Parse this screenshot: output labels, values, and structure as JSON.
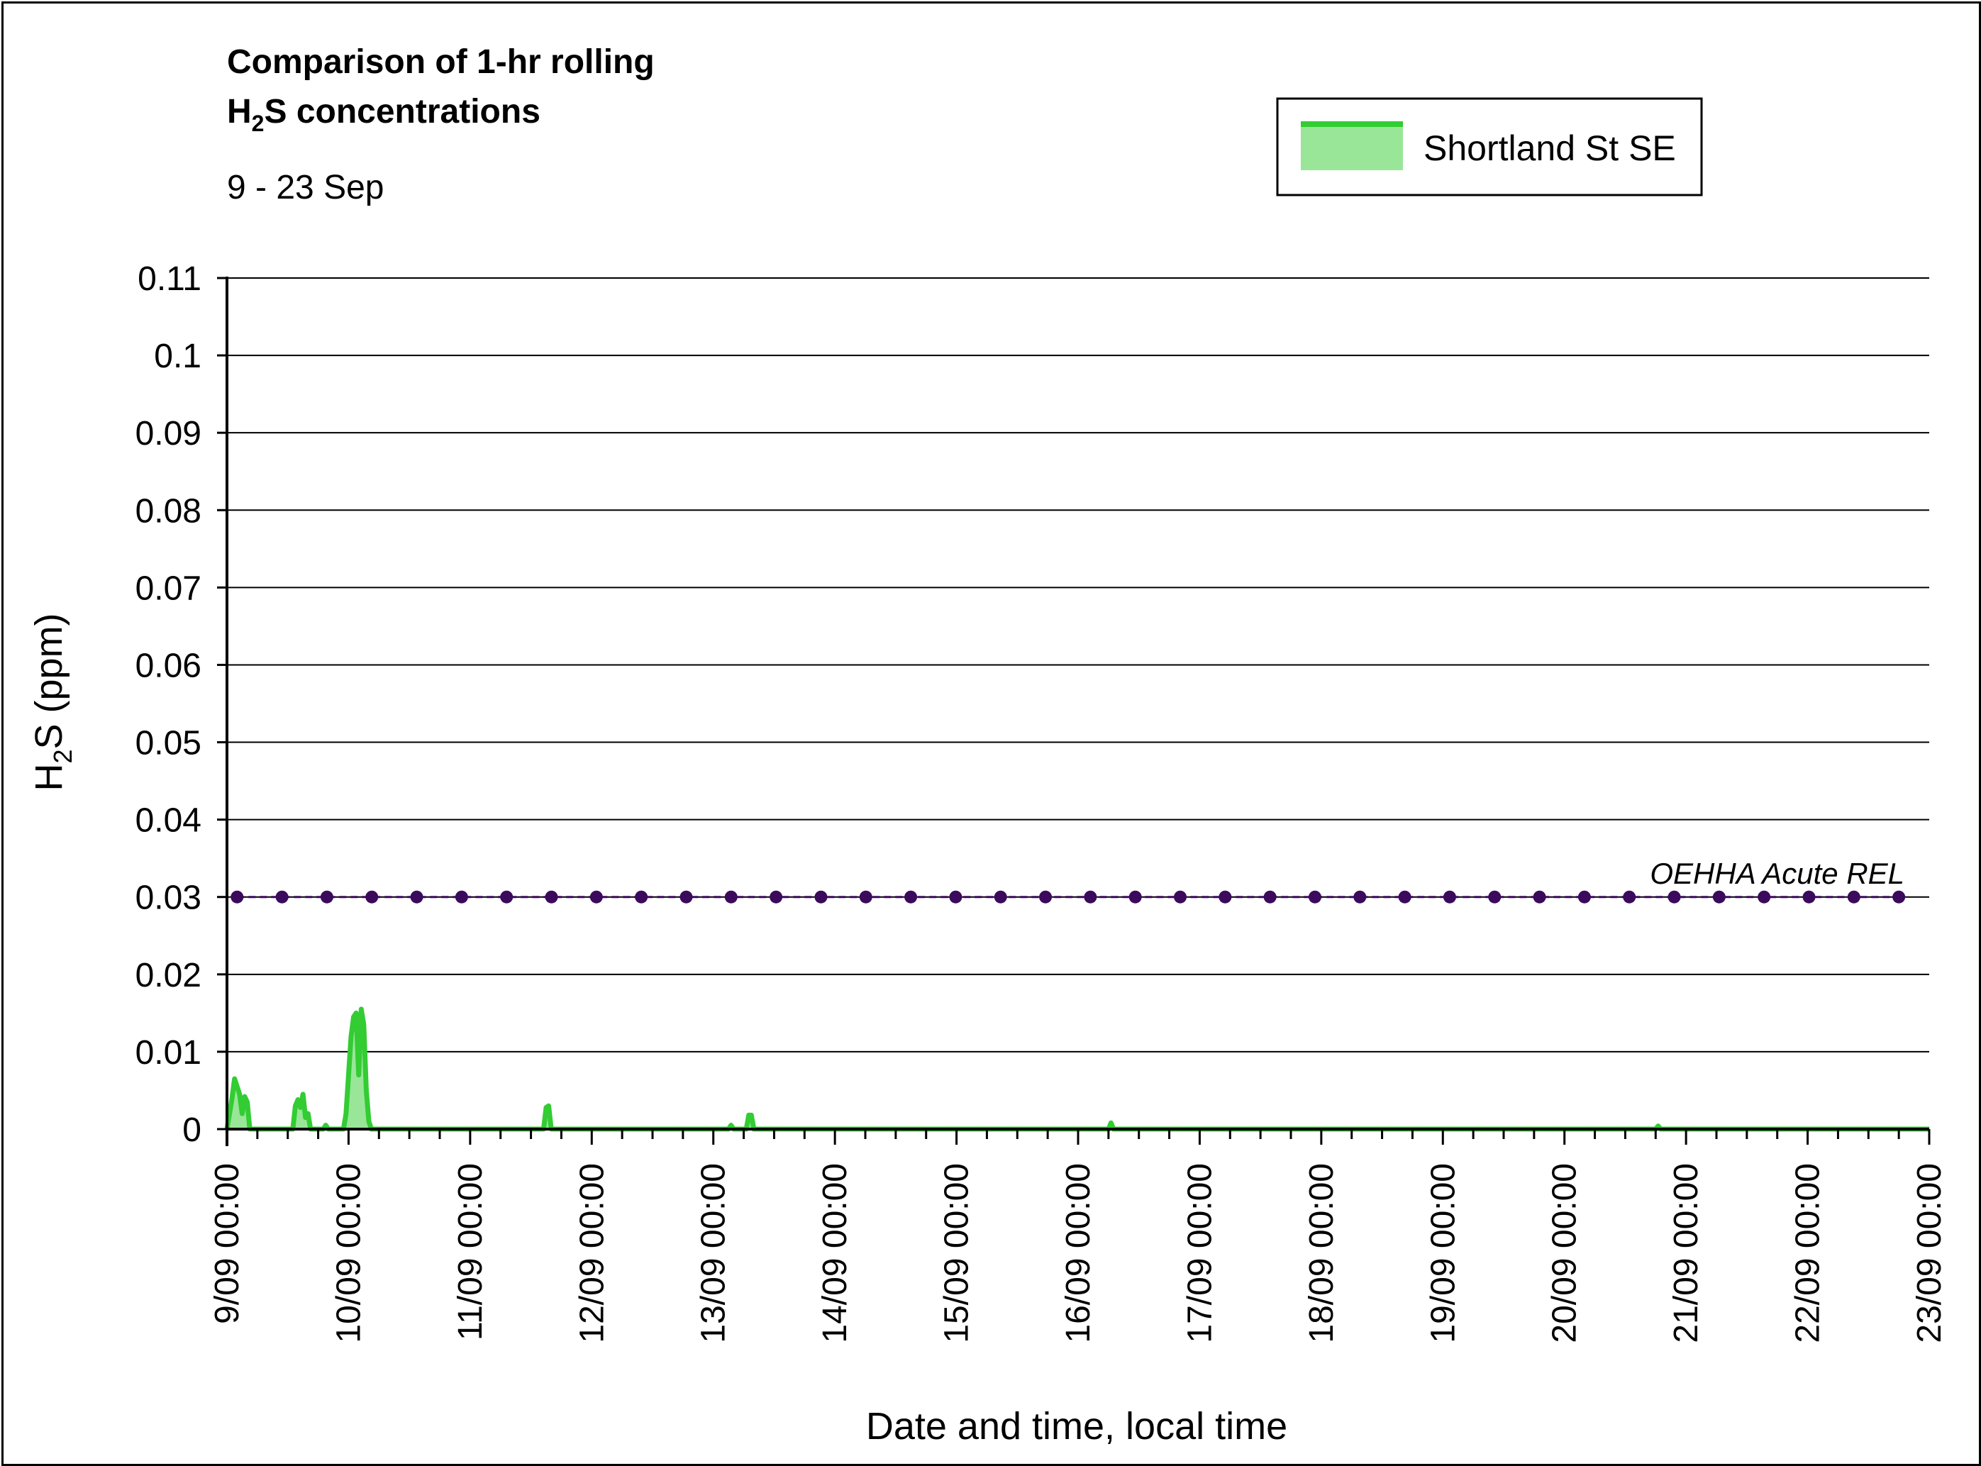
{
  "title": {
    "line1": "Comparison of 1-hr rolling",
    "line2_prefix": "H",
    "line2_sub": "2",
    "line2_suffix": "S concentrations",
    "subtitle": "9 - 23 Sep"
  },
  "legend": {
    "label": "Shortland St SE",
    "position": "top-right"
  },
  "colors": {
    "series_line": "#33cc33",
    "series_fill": "#99e699",
    "reference": "#3b0a5c",
    "grid": "#000000"
  },
  "chart_data": {
    "type": "area",
    "xlabel": "Date and time, local time",
    "ylabel_prefix": "H",
    "ylabel_sub": "2",
    "ylabel_suffix": "S (ppm)",
    "ylim": [
      0,
      0.11
    ],
    "yticks": [
      0,
      0.01,
      0.02,
      0.03,
      0.04,
      0.05,
      0.06,
      0.07,
      0.08,
      0.09,
      0.1,
      0.11
    ],
    "ytick_labels": [
      "0",
      "0.01",
      "0.02",
      "0.03",
      "0.04",
      "0.05",
      "0.06",
      "0.07",
      "0.08",
      "0.09",
      "0.1",
      "0.11"
    ],
    "xlim": [
      "2000-09-09 00:00",
      "2000-09-23 00:00"
    ],
    "xtick_labels": [
      "9/09 00:00",
      "10/09 00:00",
      "11/09 00:00",
      "12/09 00:00",
      "13/09 00:00",
      "14/09 00:00",
      "15/09 00:00",
      "16/09 00:00",
      "17/09 00:00",
      "18/09 00:00",
      "19/09 00:00",
      "20/09 00:00",
      "21/09 00:00",
      "22/09 00:00",
      "23/09 00:00"
    ],
    "grid": true,
    "series": [
      {
        "name": "Shortland St SE",
        "kind": "area",
        "points": [
          [
            "9/09 00:00",
            0
          ],
          [
            "9/09 01:00",
            0.004
          ],
          [
            "9/09 01:30",
            0.0065
          ],
          [
            "9/09 02:00",
            0.0055
          ],
          [
            "9/09 02:30",
            0.0045
          ],
          [
            "9/09 03:00",
            0.002
          ],
          [
            "9/09 03:30",
            0.0042
          ],
          [
            "9/09 04:00",
            0.0035
          ],
          [
            "9/09 04:30",
            0
          ],
          [
            "9/09 13:00",
            0
          ],
          [
            "9/09 13:30",
            0.003
          ],
          [
            "9/09 14:00",
            0.0038
          ],
          [
            "9/09 14:30",
            0.0028
          ],
          [
            "9/09 15:00",
            0.0045
          ],
          [
            "9/09 15:30",
            0.0015
          ],
          [
            "9/09 16:00",
            0.002
          ],
          [
            "9/09 16:30",
            0
          ],
          [
            "9/09 19:00",
            0
          ],
          [
            "9/09 19:30",
            0.0005
          ],
          [
            "9/09 20:00",
            0
          ],
          [
            "9/09 23:00",
            0
          ],
          [
            "9/09 23:30",
            0.002
          ],
          [
            "10/09 00:30",
            0.012
          ],
          [
            "10/09 01:00",
            0.0145
          ],
          [
            "10/09 01:30",
            0.015
          ],
          [
            "10/09 02:00",
            0.007
          ],
          [
            "10/09 02:30",
            0.0155
          ],
          [
            "10/09 03:00",
            0.0135
          ],
          [
            "10/09 03:30",
            0.005
          ],
          [
            "10/09 04:00",
            0.001
          ],
          [
            "10/09 04:30",
            0
          ],
          [
            "11/09 14:30",
            0
          ],
          [
            "11/09 15:00",
            0.0028
          ],
          [
            "11/09 15:30",
            0.003
          ],
          [
            "11/09 16:00",
            0
          ],
          [
            "13/09 03:00",
            0
          ],
          [
            "13/09 03:30",
            0.0005
          ],
          [
            "13/09 04:00",
            0
          ],
          [
            "13/09 06:30",
            0
          ],
          [
            "13/09 07:00",
            0.0018
          ],
          [
            "13/09 07:30",
            0.0018
          ],
          [
            "13/09 08:00",
            0
          ],
          [
            "16/09 06:00",
            0
          ],
          [
            "16/09 06:30",
            0.0008
          ],
          [
            "16/09 07:00",
            0
          ],
          [
            "20/09 18:00",
            0
          ],
          [
            "20/09 18:30",
            0.0004
          ],
          [
            "20/09 19:00",
            0
          ],
          [
            "23/09 00:00",
            0
          ]
        ]
      },
      {
        "name": "OEHHA Acute REL",
        "kind": "reference-line",
        "x": [
          "9/09 02:00",
          "22/09 18:00"
        ],
        "value": 0.03,
        "marker_count": 38
      }
    ],
    "annotations": [
      {
        "text": "OEHHA Acute REL",
        "at": [
          "21/09 18:00",
          0.033
        ]
      }
    ]
  }
}
